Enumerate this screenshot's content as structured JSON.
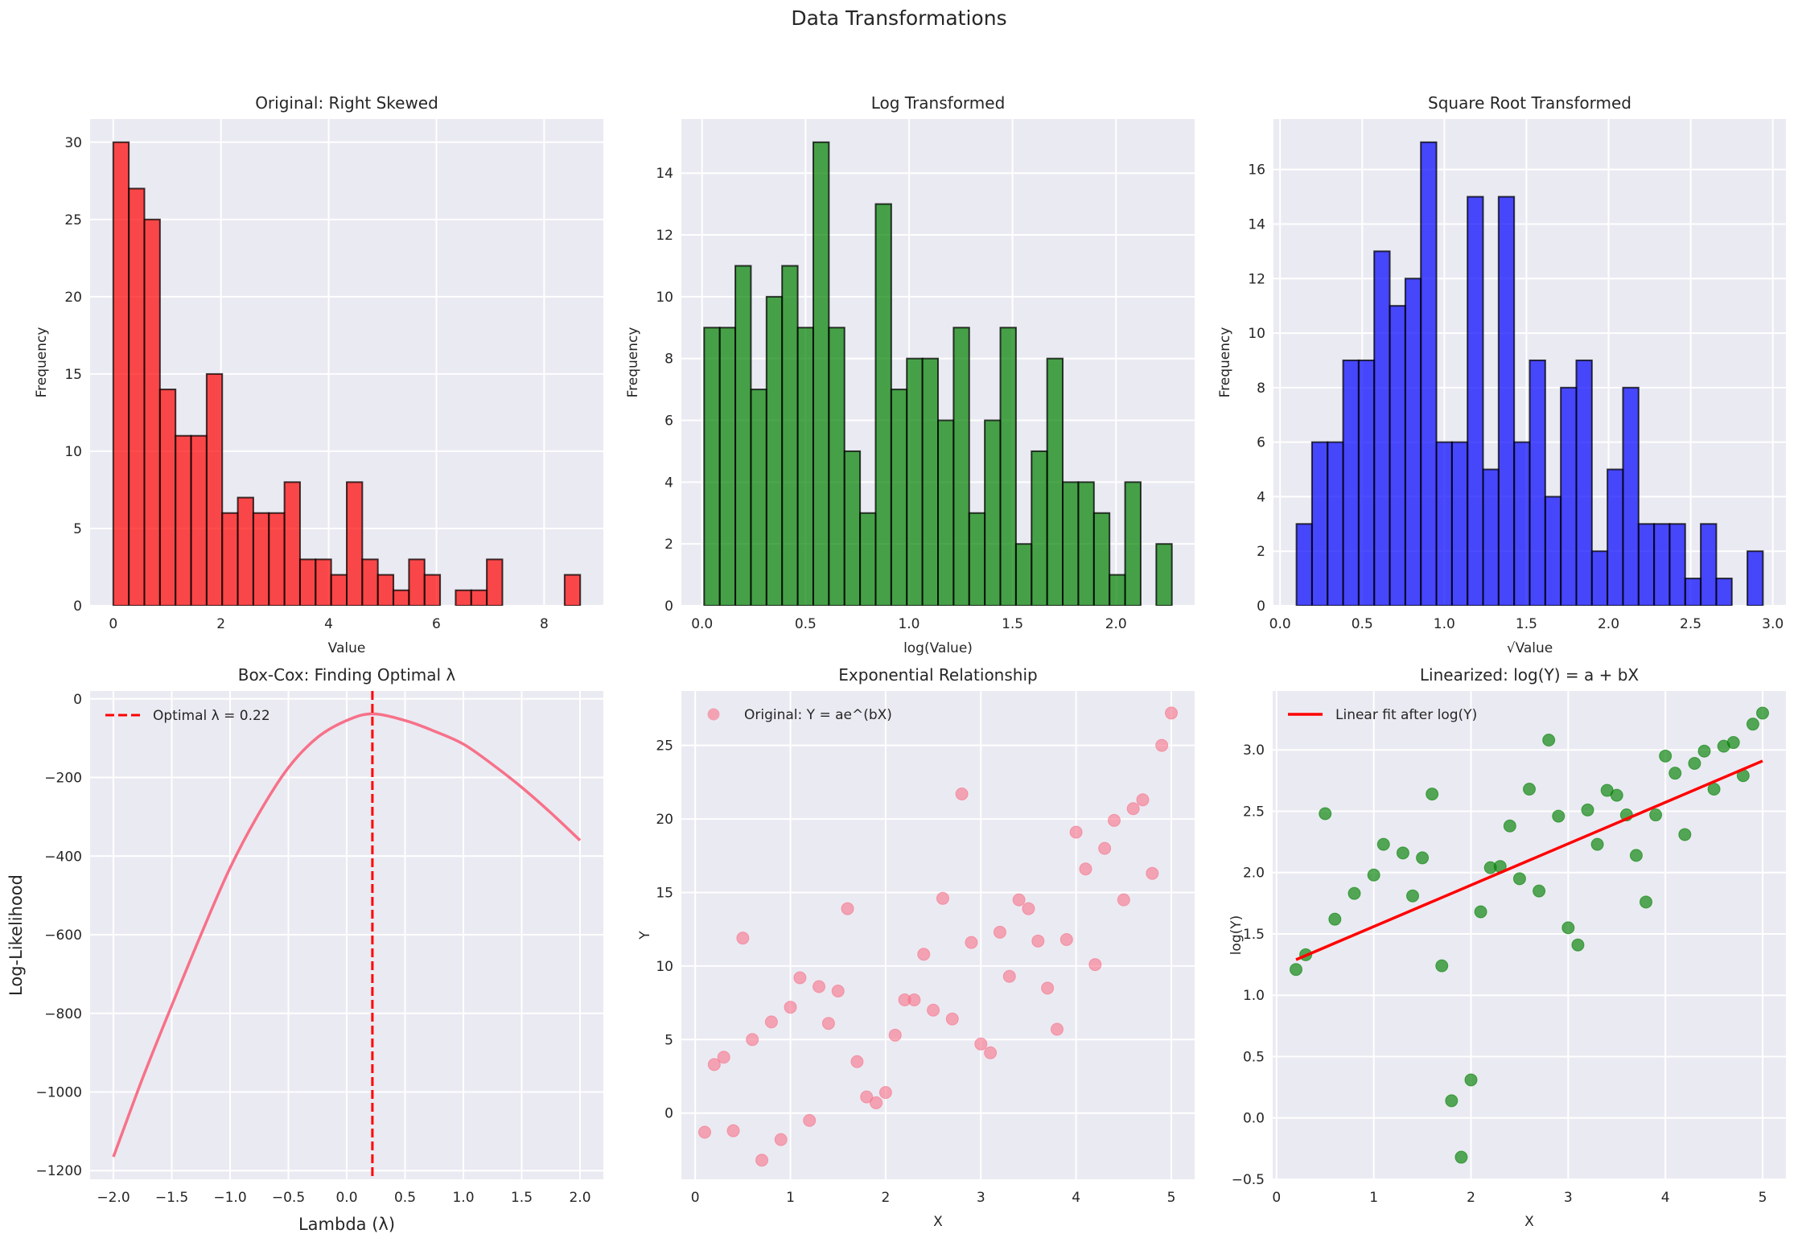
{
  "suptitle": "Data Transformations",
  "colors": {
    "axes_bg": "#eaeaf2",
    "grid": "#ffffff",
    "red_hist": "#ff0000",
    "green_hist": "#008000",
    "blue_hist": "#0000ff",
    "edge": "#000000",
    "boxcox_line": "#f77189",
    "optimal_line": "#ff0000",
    "scatter_pink": "#f77189",
    "scatter_green": "#008000",
    "fit_line": "#ff0000",
    "text": "#262626"
  },
  "chart_data": [
    {
      "id": "original",
      "type": "bar",
      "title": "Original: Right Skewed",
      "xlabel": "Value",
      "ylabel": "Frequency",
      "bin_range": [
        0.0,
        8.67
      ],
      "values": [
        30,
        27,
        25,
        14,
        11,
        11,
        15,
        6,
        7,
        6,
        6,
        8,
        3,
        3,
        2,
        8,
        3,
        2,
        1,
        3,
        2,
        0,
        1,
        1,
        3,
        0,
        0,
        0,
        0,
        2
      ],
      "xlim": [
        -0.43,
        9.1
      ],
      "ylim": [
        0,
        31.5
      ],
      "xticks": [
        0,
        2,
        4,
        6,
        8
      ],
      "xtick_labels": [
        "0",
        "2",
        "4",
        "6",
        "8"
      ],
      "yticks": [
        0,
        5,
        10,
        15,
        20,
        25,
        30
      ],
      "ytick_labels": [
        "0",
        "5",
        "10",
        "15",
        "20",
        "25",
        "30"
      ],
      "color_key": "red_hist",
      "grid": true
    },
    {
      "id": "log",
      "type": "bar",
      "title": "Log Transformed",
      "xlabel": "log(Value)",
      "ylabel": "Frequency",
      "bin_range": [
        0.01,
        2.27
      ],
      "values": [
        9,
        9,
        11,
        7,
        10,
        11,
        9,
        15,
        9,
        5,
        3,
        13,
        7,
        8,
        8,
        6,
        9,
        3,
        6,
        9,
        2,
        5,
        8,
        4,
        4,
        3,
        1,
        4,
        0,
        2
      ],
      "xlim": [
        -0.1,
        2.38
      ],
      "ylim": [
        0,
        15.75
      ],
      "xticks": [
        0.0,
        0.5,
        1.0,
        1.5,
        2.0
      ],
      "xtick_labels": [
        "0.0",
        "0.5",
        "1.0",
        "1.5",
        "2.0"
      ],
      "yticks": [
        0,
        2,
        4,
        6,
        8,
        10,
        12,
        14
      ],
      "ytick_labels": [
        "0",
        "2",
        "4",
        "6",
        "8",
        "10",
        "12",
        "14"
      ],
      "color_key": "green_hist",
      "grid": true
    },
    {
      "id": "sqrt",
      "type": "bar",
      "title": "Square Root Transformed",
      "xlabel": "√Value",
      "ylabel": "Frequency",
      "bin_range": [
        0.1,
        2.94
      ],
      "values": [
        3,
        6,
        6,
        9,
        9,
        13,
        11,
        12,
        17,
        6,
        6,
        15,
        5,
        15,
        6,
        9,
        4,
        8,
        9,
        2,
        5,
        8,
        3,
        3,
        3,
        1,
        3,
        1,
        0,
        2
      ],
      "xlim": [
        -0.04,
        3.08
      ],
      "ylim": [
        0,
        17.85
      ],
      "xticks": [
        0.0,
        0.5,
        1.0,
        1.5,
        2.0,
        2.5,
        3.0
      ],
      "xtick_labels": [
        "0.0",
        "0.5",
        "1.0",
        "1.5",
        "2.0",
        "2.5",
        "3.0"
      ],
      "yticks": [
        0,
        2,
        4,
        6,
        8,
        10,
        12,
        14,
        16
      ],
      "ytick_labels": [
        "0",
        "2",
        "4",
        "6",
        "8",
        "10",
        "12",
        "14",
        "16"
      ],
      "color_key": "blue_hist",
      "grid": true
    },
    {
      "id": "boxcox",
      "type": "line",
      "title": "Box-Cox: Finding Optimal λ",
      "xlabel": "Lambda (λ)",
      "ylabel": "Log-Likelihood",
      "x": [
        -2.0,
        -1.75,
        -1.5,
        -1.25,
        -1.0,
        -0.75,
        -0.5,
        -0.25,
        0.0,
        0.22,
        0.5,
        0.75,
        1.0,
        1.25,
        1.5,
        1.75,
        2.0
      ],
      "y": [
        -1165,
        -965,
        -780,
        -600,
        -430,
        -290,
        -175,
        -98,
        -55,
        -38,
        -55,
        -82,
        -115,
        -167,
        -225,
        -290,
        -360
      ],
      "optimal_lambda": 0.22,
      "legend": "Optimal λ = 0.22",
      "legend_loc": "upper-left",
      "xlim": [
        -2.2,
        2.2
      ],
      "ylim": [
        -1222,
        20
      ],
      "xticks": [
        -2.0,
        -1.5,
        -1.0,
        -0.5,
        0.0,
        0.5,
        1.0,
        1.5,
        2.0
      ],
      "xtick_labels": [
        "−2.0",
        "−1.5",
        "−1.0",
        "−0.5",
        "0.0",
        "0.5",
        "1.0",
        "1.5",
        "2.0"
      ],
      "yticks": [
        0,
        -200,
        -400,
        -600,
        -800,
        -1000,
        -1200
      ],
      "ytick_labels": [
        "0",
        "−200",
        "−400",
        "−600",
        "−800",
        "−1000",
        "−1200"
      ],
      "grid": true
    },
    {
      "id": "exponential",
      "type": "scatter",
      "title": "Exponential Relationship",
      "xlabel": "X",
      "ylabel": "Y",
      "legend": "Original: Y = ae^(bX)",
      "legend_loc": "upper-left",
      "x": [
        0.1,
        0.2,
        0.3,
        0.4,
        0.5,
        0.6,
        0.7,
        0.8,
        0.9,
        1.0,
        1.1,
        1.2,
        1.3,
        1.4,
        1.5,
        1.6,
        1.7,
        1.8,
        1.9,
        2.0,
        2.1,
        2.2,
        2.3,
        2.4,
        2.5,
        2.6,
        2.7,
        2.8,
        2.9,
        3.0,
        3.1,
        3.2,
        3.3,
        3.4,
        3.5,
        3.6,
        3.7,
        3.8,
        3.9,
        4.0,
        4.1,
        4.2,
        4.3,
        4.4,
        4.5,
        4.6,
        4.7,
        4.8,
        4.9,
        5.0
      ],
      "y": [
        -1.3,
        3.3,
        3.8,
        -1.2,
        11.9,
        5.0,
        -3.2,
        6.2,
        -1.8,
        7.2,
        9.2,
        -0.5,
        8.6,
        6.1,
        8.3,
        13.9,
        3.5,
        1.1,
        0.7,
        1.4,
        5.3,
        7.7,
        7.7,
        10.8,
        7.0,
        14.6,
        6.4,
        21.7,
        11.6,
        4.7,
        4.1,
        12.3,
        9.3,
        14.5,
        13.9,
        11.7,
        8.5,
        5.7,
        11.8,
        19.1,
        16.6,
        10.1,
        18.0,
        19.9,
        14.5,
        20.7,
        21.3,
        16.3,
        25.0,
        27.2
      ],
      "xlim": [
        -0.145,
        5.245
      ],
      "ylim": [
        -4.5,
        28.7
      ],
      "xticks": [
        0,
        1,
        2,
        3,
        4,
        5
      ],
      "xtick_labels": [
        "0",
        "1",
        "2",
        "3",
        "4",
        "5"
      ],
      "yticks": [
        0,
        5,
        10,
        15,
        20,
        25
      ],
      "ytick_labels": [
        "0",
        "5",
        "10",
        "15",
        "20",
        "25"
      ],
      "grid": true
    },
    {
      "id": "linearized",
      "type": "scatter",
      "title": "Linearized: log(Y) = a + bX",
      "xlabel": "X",
      "ylabel": "log(Y)",
      "legend": "Linear fit after log(Y)",
      "legend_loc": "upper-left",
      "x": [
        0.2,
        0.3,
        0.5,
        0.6,
        0.8,
        1.0,
        1.1,
        1.3,
        1.4,
        1.5,
        1.6,
        1.7,
        1.8,
        1.9,
        2.0,
        2.1,
        2.2,
        2.3,
        2.4,
        2.5,
        2.6,
        2.7,
        2.8,
        2.9,
        3.0,
        3.1,
        3.2,
        3.3,
        3.4,
        3.5,
        3.6,
        3.7,
        3.8,
        3.9,
        4.0,
        4.1,
        4.2,
        4.3,
        4.4,
        4.5,
        4.6,
        4.7,
        4.8,
        4.9,
        5.0
      ],
      "y": [
        1.21,
        1.33,
        2.48,
        1.62,
        1.83,
        1.98,
        2.23,
        2.16,
        1.81,
        2.12,
        2.64,
        1.24,
        0.14,
        -0.32,
        0.31,
        1.68,
        2.04,
        2.05,
        2.38,
        1.95,
        2.68,
        1.85,
        3.08,
        2.46,
        1.55,
        1.41,
        2.51,
        2.23,
        2.67,
        2.63,
        2.47,
        2.14,
        1.76,
        2.47,
        2.95,
        2.81,
        2.31,
        2.89,
        2.99,
        2.68,
        3.03,
        3.06,
        2.79,
        3.21,
        3.3
      ],
      "fit_line": {
        "x": [
          0.2,
          5.0
        ],
        "y": [
          1.29,
          2.91
        ]
      },
      "xlim": [
        -0.04,
        5.24
      ],
      "ylim": [
        -0.5,
        3.48
      ],
      "xticks": [
        0,
        1,
        2,
        3,
        4,
        5
      ],
      "xtick_labels": [
        "0",
        "1",
        "2",
        "3",
        "4",
        "5"
      ],
      "yticks": [
        -0.5,
        0.0,
        0.5,
        1.0,
        1.5,
        2.0,
        2.5,
        3.0
      ],
      "ytick_labels": [
        "−0.5",
        "0.0",
        "0.5",
        "1.0",
        "1.5",
        "2.0",
        "2.5",
        "3.0"
      ],
      "grid": true
    }
  ]
}
